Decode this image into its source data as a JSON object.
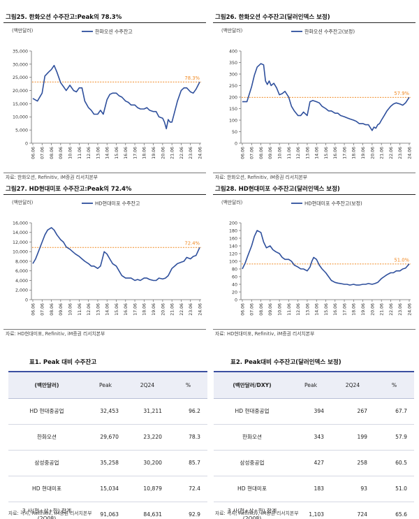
{
  "charts": [
    {
      "title": "그림25. 한화오션 수주잔고:Peak의 78.3%",
      "unit": "(백만달러)",
      "legend": "한화오션 수주잔고",
      "source": "자료: 한화오션, Refinitiv, iM증권 리서치본부",
      "ref_label": "78.3%"
    },
    {
      "title": "그림26. 한화오션 수주잔고(달러인덱스 보정)",
      "unit": "(백만달러)",
      "legend": "한화오션 수주잔고(보정)",
      "source": "자료: 한화오션, Refinitiv, iM증권 리서치본부",
      "ref_label": "57.9%"
    },
    {
      "title": "그림27. HD현대미포 수주잔고:Peak의 72.4%",
      "unit": "(백만달러)",
      "legend": "HD현대미포 수주잔고",
      "source": "자료: HD현대미포, Refinitiv, iM증권 리서치본부",
      "ref_label": "72.4%"
    },
    {
      "title": "그림28. HD현대미포 수주잔고(달러인덱스 보정)",
      "unit": "(백만달러)",
      "legend": "HD현대미포 수주잔고(보정)",
      "source": "자료: HD현대미포, Refinitiv, iM증권 리서치본부",
      "ref_label": "51.0%"
    }
  ],
  "chart_data": [
    {
      "type": "line",
      "title": "그림25. 한화오션 수주잔고:Peak의 78.3%",
      "ylabel": "(백만달러)",
      "ylim": [
        0,
        35000
      ],
      "yticks": [
        "0",
        "5,000",
        "10,000",
        "15,000",
        "20,000",
        "25,000",
        "30,000",
        "35,000"
      ],
      "x": [
        "06.06",
        "07.06",
        "08.06",
        "09.06",
        "10.06",
        "11.06",
        "12.06",
        "13.06",
        "14.06",
        "15.06",
        "16.06",
        "17.06",
        "18.06",
        "19.06",
        "20.06",
        "21.06",
        "22.06",
        "23.06",
        "24.06"
      ],
      "grid": false,
      "series": [
        {
          "name": "한화오션 수주잔고",
          "color": "#2e4f9c",
          "x": [
            0.0,
            0.5,
            1.0,
            1.3,
            1.7,
            2.0,
            2.3,
            2.6,
            3.0,
            3.3,
            3.6,
            4.0,
            4.4,
            4.7,
            5.0,
            5.3,
            5.6,
            6.0,
            6.3,
            6.6,
            7.0,
            7.3,
            7.6,
            8.0,
            8.3,
            8.6,
            9.0,
            9.3,
            9.6,
            10.0,
            10.3,
            10.6,
            11.0,
            11.3,
            11.6,
            12.0,
            12.3,
            12.6,
            13.0,
            13.3,
            13.6,
            14.0,
            14.2,
            14.4,
            14.6,
            14.8,
            15.0,
            15.3,
            15.6,
            16.0,
            16.3,
            16.6,
            17.0,
            17.3,
            17.6,
            18.0
          ],
          "values": [
            17000,
            16000,
            19000,
            25500,
            27000,
            28000,
            29500,
            27000,
            23000,
            21500,
            20000,
            22000,
            20000,
            19500,
            21000,
            21000,
            16000,
            13500,
            12500,
            11000,
            11000,
            12500,
            11000,
            16500,
            18500,
            19000,
            19000,
            18000,
            17500,
            16000,
            15500,
            14500,
            14500,
            13500,
            13000,
            13000,
            13500,
            12500,
            12000,
            12000,
            10000,
            9500,
            8000,
            5500,
            9000,
            8000,
            8000,
            12000,
            16000,
            20000,
            21000,
            21000,
            19500,
            19000,
            20500,
            23220
          ]
        }
      ],
      "reference": {
        "label": "78.3%",
        "value": 23220,
        "color": "#f08a24"
      }
    },
    {
      "type": "line",
      "title": "그림26. 한화오션 수주잔고(달러인덱스 보정)",
      "ylabel": "(백만달러)",
      "ylim": [
        0,
        400
      ],
      "yticks": [
        "0",
        "50",
        "100",
        "150",
        "200",
        "250",
        "300",
        "350",
        "400"
      ],
      "x": [
        "06.06",
        "07.06",
        "08.06",
        "09.06",
        "10.06",
        "11.06",
        "12.06",
        "13.06",
        "14.06",
        "15.06",
        "16.06",
        "17.06",
        "18.06",
        "19.06",
        "20.06",
        "21.06",
        "22.06",
        "23.06",
        "24.06"
      ],
      "grid": false,
      "series": [
        {
          "name": "한화오션 수주잔고(보정)",
          "color": "#2e4f9c",
          "x": [
            0.0,
            0.5,
            1.0,
            1.3,
            1.6,
            2.0,
            2.3,
            2.5,
            2.7,
            2.9,
            3.1,
            3.4,
            3.7,
            4.0,
            4.3,
            4.6,
            5.0,
            5.3,
            5.6,
            6.0,
            6.3,
            6.6,
            7.0,
            7.3,
            7.6,
            8.0,
            8.3,
            8.6,
            9.0,
            9.3,
            9.6,
            10.0,
            10.3,
            10.6,
            11.0,
            11.3,
            11.6,
            12.0,
            12.3,
            12.6,
            13.0,
            13.3,
            13.6,
            14.0,
            14.2,
            14.4,
            14.6,
            14.8,
            15.0,
            15.3,
            15.6,
            16.0,
            16.3,
            16.6,
            17.0,
            17.3,
            17.6,
            18.0
          ],
          "values": [
            180,
            180,
            245,
            295,
            330,
            345,
            340,
            270,
            255,
            270,
            250,
            260,
            240,
            210,
            215,
            225,
            200,
            160,
            140,
            120,
            120,
            135,
            120,
            180,
            185,
            180,
            175,
            160,
            150,
            140,
            140,
            130,
            130,
            120,
            115,
            110,
            105,
            100,
            95,
            85,
            85,
            80,
            80,
            55,
            70,
            65,
            80,
            85,
            100,
            120,
            140,
            160,
            170,
            175,
            170,
            165,
            175,
            199
          ]
        }
      ],
      "reference": {
        "label": "57.9%",
        "value": 199,
        "color": "#f08a24"
      }
    },
    {
      "type": "line",
      "title": "그림27. HD현대미포 수주잔고:Peak의 72.4%",
      "ylabel": "(백만달러)",
      "ylim": [
        0,
        16000
      ],
      "yticks": [
        "0",
        "2,000",
        "4,000",
        "6,000",
        "8,000",
        "10,000",
        "12,000",
        "14,000",
        "16,000"
      ],
      "x": [
        "06.06",
        "07.06",
        "08.06",
        "09.06",
        "10.06",
        "11.06",
        "12.06",
        "13.06",
        "14.06",
        "15.06",
        "16.06",
        "17.06",
        "18.06",
        "19.06",
        "20.06",
        "21.06",
        "22.06",
        "23.06",
        "24.06"
      ],
      "grid": false,
      "series": [
        {
          "name": "HD현대미포 수주잔고",
          "color": "#2e4f9c",
          "x": [
            0.0,
            0.3,
            0.6,
            1.0,
            1.3,
            1.6,
            2.0,
            2.3,
            2.6,
            3.0,
            3.3,
            3.6,
            4.0,
            4.3,
            4.6,
            5.0,
            5.3,
            5.6,
            6.0,
            6.3,
            6.6,
            7.0,
            7.3,
            7.5,
            7.7,
            8.0,
            8.3,
            8.6,
            9.0,
            9.3,
            9.6,
            10.0,
            10.3,
            10.6,
            11.0,
            11.3,
            11.6,
            12.0,
            12.3,
            12.6,
            13.0,
            13.3,
            13.6,
            14.0,
            14.3,
            14.6,
            15.0,
            15.3,
            15.6,
            16.0,
            16.3,
            16.6,
            17.0,
            17.3,
            17.6,
            18.0
          ],
          "values": [
            7500,
            8500,
            10000,
            12000,
            13500,
            14500,
            15000,
            14500,
            13500,
            12500,
            12000,
            11000,
            10500,
            10000,
            9500,
            9000,
            8500,
            8000,
            7500,
            7000,
            7000,
            6500,
            7000,
            8500,
            10000,
            9500,
            8500,
            7500,
            7000,
            6000,
            5000,
            4500,
            4500,
            4500,
            4000,
            4200,
            4000,
            4500,
            4500,
            4200,
            4000,
            4000,
            4500,
            4300,
            4500,
            5000,
            6500,
            7000,
            7500,
            7800,
            8000,
            8800,
            8500,
            9000,
            9200,
            10879
          ]
        }
      ],
      "reference": {
        "label": "72.4%",
        "value": 10879,
        "color": "#f08a24"
      }
    },
    {
      "type": "line",
      "title": "그림28. HD현대미포 수주잔고(달러인덱스 보정)",
      "ylabel": "(백만달러)",
      "ylim": [
        0,
        200
      ],
      "yticks": [
        "0",
        "20",
        "40",
        "60",
        "80",
        "100",
        "120",
        "140",
        "160",
        "180",
        "200"
      ],
      "x": [
        "06.06",
        "07.06",
        "08.06",
        "09.06",
        "10.06",
        "11.06",
        "12.06",
        "13.06",
        "14.06",
        "15.06",
        "16.06",
        "17.06",
        "18.06",
        "19.06",
        "20.06",
        "21.06",
        "22.06",
        "23.06",
        "24.06"
      ],
      "grid": false,
      "series": [
        {
          "name": "HD현대미포 수주잔고(보정)",
          "color": "#2e4f9c",
          "x": [
            0.0,
            0.3,
            0.6,
            1.0,
            1.3,
            1.6,
            2.0,
            2.3,
            2.6,
            3.0,
            3.3,
            3.6,
            4.0,
            4.3,
            4.6,
            5.0,
            5.3,
            5.6,
            6.0,
            6.3,
            6.6,
            7.0,
            7.3,
            7.5,
            7.7,
            8.0,
            8.3,
            8.6,
            9.0,
            9.3,
            9.6,
            10.0,
            10.3,
            10.6,
            11.0,
            11.3,
            11.6,
            12.0,
            12.3,
            12.6,
            13.0,
            13.3,
            13.6,
            14.0,
            14.3,
            14.6,
            15.0,
            15.3,
            15.6,
            16.0,
            16.3,
            16.6,
            17.0,
            17.3,
            17.6,
            18.0
          ],
          "values": [
            80,
            95,
            115,
            140,
            165,
            180,
            175,
            150,
            135,
            140,
            130,
            125,
            120,
            110,
            105,
            105,
            100,
            90,
            85,
            80,
            80,
            75,
            85,
            100,
            110,
            105,
            90,
            80,
            70,
            60,
            50,
            45,
            43,
            42,
            40,
            40,
            38,
            40,
            38,
            38,
            40,
            40,
            42,
            40,
            42,
            45,
            55,
            60,
            65,
            70,
            70,
            75,
            75,
            80,
            82,
            93
          ]
        }
      ],
      "reference": {
        "label": "51.0%",
        "value": 93,
        "color": "#f08a24"
      }
    }
  ],
  "tables": [
    {
      "title": "표1.  Peak 대비 수주잔고",
      "headers": [
        "(백만달러)",
        "Peak",
        "2Q24",
        "%"
      ],
      "rows": [
        {
          "name": "HD 현대중공업",
          "name2": "",
          "peak": "32,453",
          "q": "31,211",
          "pct": "96.2"
        },
        {
          "name": "한화오션",
          "name2": "",
          "peak": "29,670",
          "q": "23,220",
          "pct": "78.3"
        },
        {
          "name": "삼성중공업",
          "name2": "",
          "peak": "35,258",
          "q": "30,200",
          "pct": "85.7"
        },
        {
          "name": "HD 현대미포",
          "name2": "",
          "peak": "15,034",
          "q": "10,879",
          "pct": "72.4"
        },
        {
          "name": "3 사(현+삼+한) 합계",
          "name2": "(2Q08)",
          "peak": "91,063",
          "q": "84,631",
          "pct": "92.9"
        }
      ],
      "source": "자료: 각사, Refinitiv, iM증권 리서치본부"
    },
    {
      "title": "표2.  Peak대비 수주잔고(달러인덱스 보정)",
      "headers": [
        "(백만달러/DXY)",
        "Peak",
        "2Q24",
        "%"
      ],
      "rows": [
        {
          "name": "HD 현대중공업",
          "name2": "",
          "peak": "394",
          "q": "267",
          "pct": "67.7"
        },
        {
          "name": "한화오션",
          "name2": "",
          "peak": "343",
          "q": "199",
          "pct": "57.9"
        },
        {
          "name": "삼성중공업",
          "name2": "",
          "peak": "427",
          "q": "258",
          "pct": "60.5"
        },
        {
          "name": "HD 현대미포",
          "name2": "",
          "peak": "183",
          "q": "93",
          "pct": "51.0"
        },
        {
          "name": "3 사(현+삼+한) 합계",
          "name2": "(2Q08)",
          "peak": "1,103",
          "q": "724",
          "pct": "65.6"
        }
      ],
      "source": "자료: 각사, Refinitiv, iM증권 리서치본부"
    }
  ]
}
